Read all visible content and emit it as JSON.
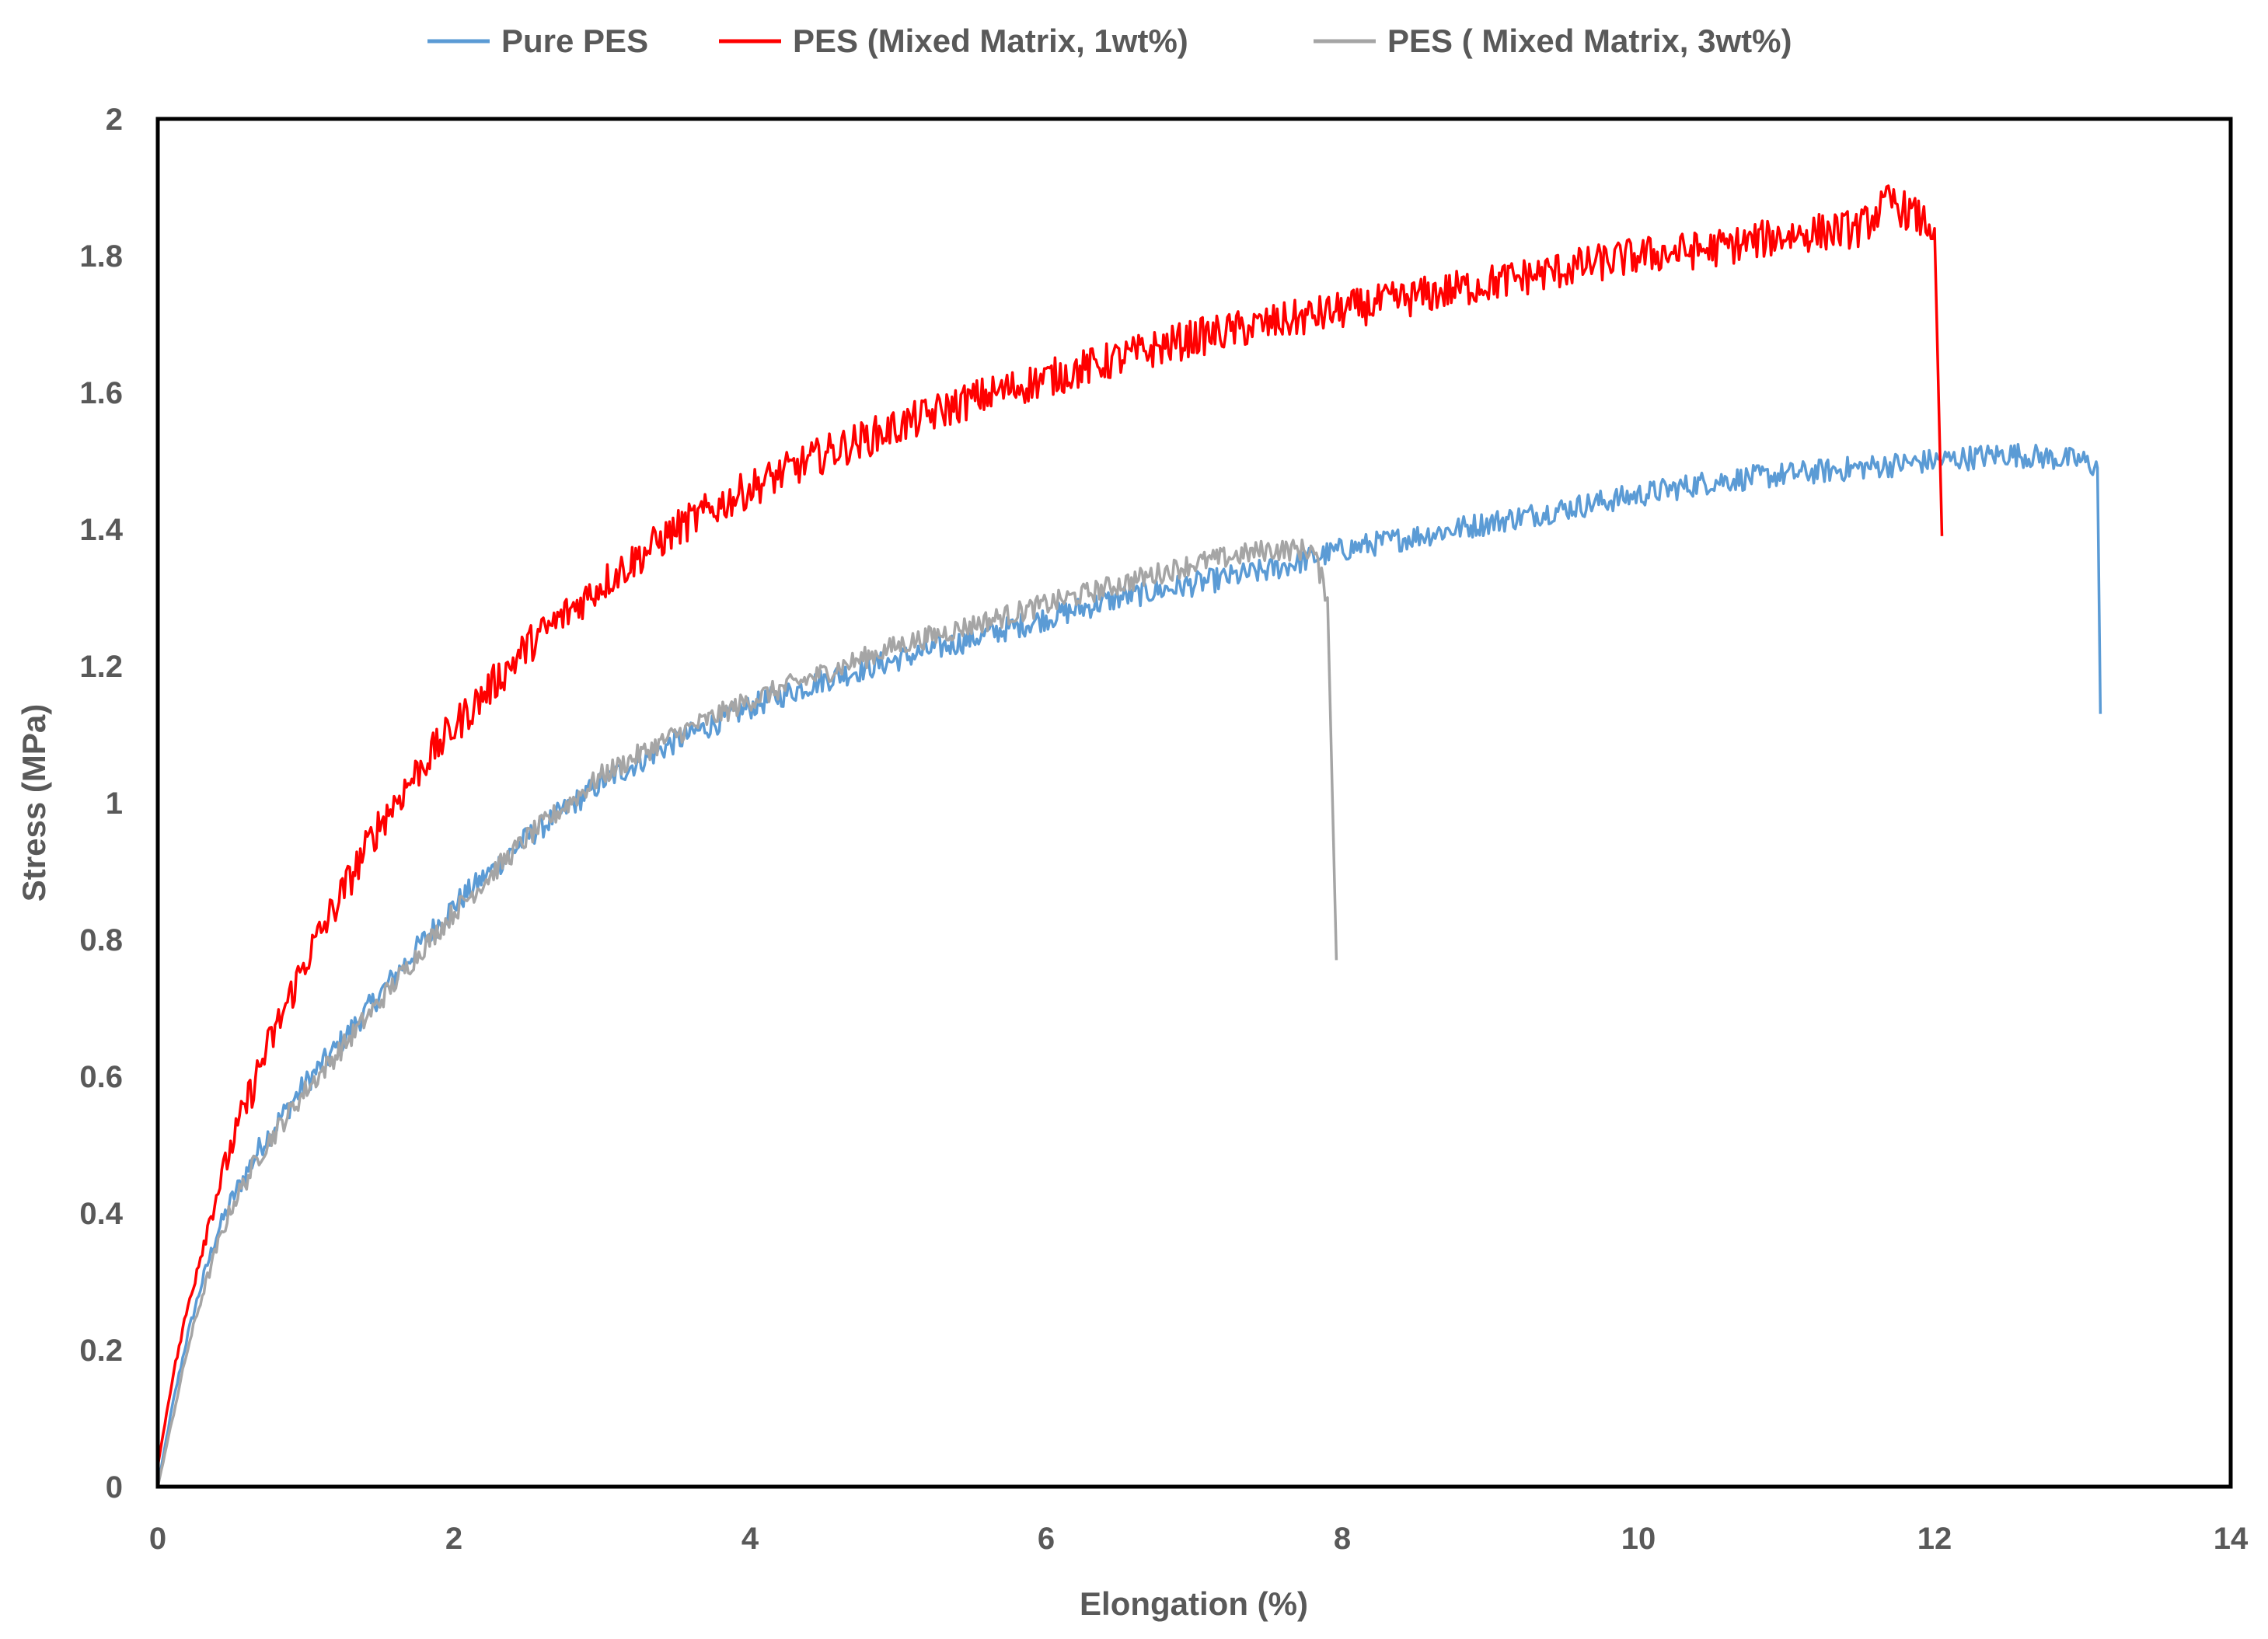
{
  "chart_data": {
    "type": "line",
    "title": "",
    "xlabel": "Elongation (%)",
    "ylabel": "Stress (MPa)",
    "xlim": [
      0,
      14
    ],
    "ylim": [
      0,
      2
    ],
    "grid": false,
    "legend_position": "top-center",
    "x_ticks": [
      "0",
      "2",
      "4",
      "6",
      "8",
      "10",
      "12",
      "14"
    ],
    "y_ticks": [
      "0",
      "0.2",
      "0.4",
      "0.6",
      "0.8",
      "1",
      "1.2",
      "1.4",
      "1.6",
      "1.8",
      "2"
    ],
    "x_tick_values": [
      0,
      2,
      4,
      6,
      8,
      10,
      12,
      14
    ],
    "y_tick_values": [
      0,
      0.2,
      0.4,
      0.6,
      0.8,
      1.0,
      1.2,
      1.4,
      1.6,
      1.8,
      2.0
    ],
    "series": [
      {
        "name": "Pure PES",
        "color": "#5B9BD5",
        "x": [
          0,
          0.1,
          0.2,
          0.3,
          0.4,
          0.5,
          0.7,
          0.9,
          1.0,
          1.2,
          1.5,
          1.8,
          2.0,
          2.5,
          3.0,
          3.5,
          4.0,
          4.5,
          5.0,
          5.5,
          6.0,
          6.5,
          7.0,
          7.5,
          8.0,
          8.5,
          9.0,
          9.5,
          10.0,
          10.5,
          11.0,
          11.5,
          12.0,
          12.5,
          13.0,
          13.1,
          13.12
        ],
        "y": [
          0.0,
          0.12,
          0.22,
          0.3,
          0.37,
          0.42,
          0.5,
          0.56,
          0.59,
          0.64,
          0.72,
          0.8,
          0.85,
          0.95,
          1.03,
          1.09,
          1.14,
          1.18,
          1.21,
          1.24,
          1.27,
          1.3,
          1.32,
          1.34,
          1.37,
          1.39,
          1.41,
          1.43,
          1.45,
          1.47,
          1.48,
          1.49,
          1.5,
          1.51,
          1.5,
          1.49,
          1.13
        ]
      },
      {
        "name": "PES (Mixed Matrix, 1wt%)",
        "color": "#FF0000",
        "x": [
          0,
          0.1,
          0.2,
          0.3,
          0.4,
          0.5,
          0.7,
          0.9,
          1.0,
          1.2,
          1.5,
          1.8,
          2.0,
          2.5,
          3.0,
          3.5,
          4.0,
          4.5,
          5.0,
          5.5,
          6.0,
          6.5,
          7.0,
          7.5,
          8.0,
          8.5,
          9.0,
          9.5,
          10.0,
          10.5,
          11.0,
          11.5,
          11.7,
          12.0,
          12.05
        ],
        "y": [
          0.03,
          0.16,
          0.26,
          0.35,
          0.43,
          0.5,
          0.62,
          0.72,
          0.77,
          0.85,
          0.97,
          1.06,
          1.11,
          1.23,
          1.32,
          1.4,
          1.46,
          1.51,
          1.55,
          1.59,
          1.62,
          1.65,
          1.68,
          1.7,
          1.72,
          1.74,
          1.76,
          1.78,
          1.8,
          1.81,
          1.83,
          1.84,
          1.88,
          1.84,
          1.39
        ]
      },
      {
        "name": "PES ( Mixed Matrix, 3wt%)",
        "color": "#A5A5A5",
        "x": [
          0,
          0.1,
          0.2,
          0.3,
          0.4,
          0.5,
          0.7,
          0.9,
          1.0,
          1.2,
          1.5,
          1.8,
          2.0,
          2.5,
          3.0,
          3.5,
          4.0,
          4.5,
          5.0,
          5.5,
          6.0,
          6.5,
          7.0,
          7.5,
          7.8,
          7.9,
          7.96
        ],
        "y": [
          0.0,
          0.1,
          0.2,
          0.28,
          0.35,
          0.41,
          0.49,
          0.55,
          0.58,
          0.63,
          0.71,
          0.79,
          0.84,
          0.95,
          1.04,
          1.1,
          1.15,
          1.19,
          1.23,
          1.26,
          1.29,
          1.32,
          1.35,
          1.37,
          1.37,
          1.3,
          0.77
        ]
      }
    ]
  }
}
